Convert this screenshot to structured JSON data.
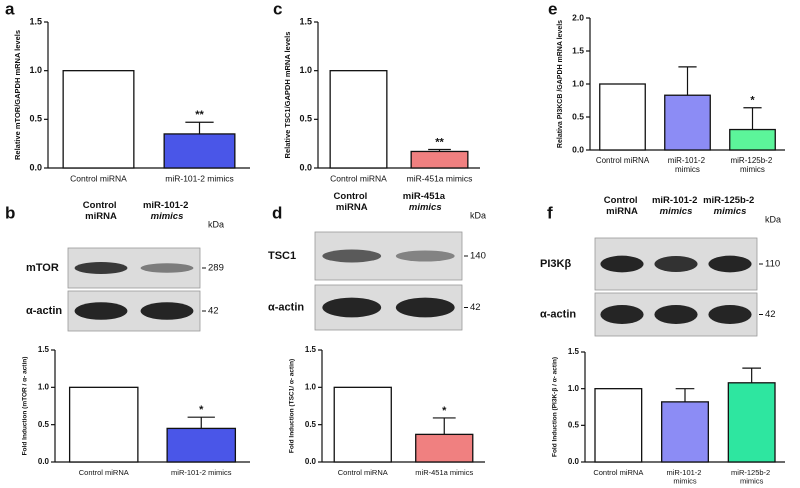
{
  "chart_data": [
    {
      "type": "bar",
      "panel": "a",
      "ylabel": "Relative mTOR/GAPDH mRNA levels",
      "categories": [
        "Control miRNA",
        "miR-101-2 mimics"
      ],
      "values": [
        1.0,
        0.35
      ],
      "errors": [
        null,
        0.12
      ],
      "colors": [
        "#ffffff",
        "#4a56e8"
      ],
      "annotations": [
        null,
        "**"
      ],
      "ylim": [
        0,
        1.5
      ],
      "yticks": [
        {
          "value": 0,
          "label": "0.0"
        },
        0.5,
        {
          "value": 1,
          "label": "1.0"
        },
        1.5
      ]
    },
    {
      "type": "bar",
      "panel": "c",
      "ylabel": "Relative TSC1/GAPDH mRNA levels",
      "categories": [
        "Control miRNA",
        "miR-451a mimics"
      ],
      "values": [
        1.0,
        0.17
      ],
      "errors": [
        null,
        0.02
      ],
      "colors": [
        "#ffffff",
        "#f08080"
      ],
      "annotations": [
        null,
        "**"
      ],
      "ylim": [
        0,
        1.5
      ],
      "yticks": [
        {
          "value": 0,
          "label": "0.0"
        },
        0.5,
        {
          "value": 1,
          "label": "1.0"
        },
        1.5
      ]
    },
    {
      "type": "bar",
      "panel": "e",
      "ylabel": "Relativa PI3KCB /GAPDH mRNA levels",
      "categories": [
        "Control miRNA",
        "miR-101-2 mimics",
        "miR-125b-2 mimics"
      ],
      "values": [
        1.0,
        0.83,
        0.31
      ],
      "errors": [
        null,
        0.43,
        0.33
      ],
      "colors": [
        "#ffffff",
        "#8c8cf5",
        "#5cf59a"
      ],
      "annotations": [
        null,
        null,
        "*"
      ],
      "ylim": [
        0,
        2
      ],
      "yticks": [
        {
          "value": 0,
          "label": "0.0"
        },
        0.5,
        {
          "value": 1,
          "label": "1.0"
        },
        1.5,
        {
          "value": 2,
          "label": "2.0"
        }
      ]
    },
    {
      "type": "bar",
      "ylabel": "Fold Induction (mTOR / α- actin)",
      "categories": [
        "Control miRNA",
        "miR-101-2 mimics"
      ],
      "values": [
        1.0,
        0.45
      ],
      "errors": [
        null,
        0.15
      ],
      "colors": [
        "#ffffff",
        "#4a56e8"
      ],
      "annotations": [
        null,
        "*"
      ],
      "ylim": [
        0,
        1.5
      ],
      "yticks": [
        {
          "value": 0,
          "label": "0.0"
        },
        0.5,
        {
          "value": 1,
          "label": "1.0"
        },
        1.5
      ]
    },
    {
      "type": "bar",
      "ylabel": "Fold Induction (TSC1/ α- actin)",
      "categories": [
        "Control miRNA",
        "miR-451a mimics"
      ],
      "values": [
        1.0,
        0.37
      ],
      "errors": [
        null,
        0.22
      ],
      "colors": [
        "#ffffff",
        "#f08080"
      ],
      "annotations": [
        null,
        "*"
      ],
      "ylim": [
        0,
        1.5
      ],
      "yticks": [
        {
          "value": 0,
          "label": "0.0"
        },
        0.5,
        {
          "value": 1,
          "label": "1.0"
        },
        1.5
      ]
    },
    {
      "type": "bar",
      "ylabel": "Fold Induction (PI3K-β / α- actin)",
      "categories": [
        "Control miRNA",
        "miR-101-2 mimics",
        "miR-125b-2 mimics"
      ],
      "values": [
        1.0,
        0.82,
        1.08
      ],
      "errors": [
        null,
        0.18,
        0.2
      ],
      "colors": [
        "#ffffff",
        "#8c8cf5",
        "#2ee6a0"
      ],
      "annotations": [
        null,
        null,
        null
      ],
      "ylim": [
        0,
        1.5
      ],
      "yticks": [
        {
          "value": 0,
          "label": "0.0"
        },
        0.5,
        {
          "value": 1,
          "label": "1.0"
        },
        1.5
      ]
    }
  ],
  "blots": [
    {
      "panel": "b",
      "lanes": [
        "Control miRNA",
        "miR-101-2 mimics"
      ],
      "unit": "kDa",
      "rows": [
        {
          "name": "mTOR",
          "kda": 289
        },
        {
          "name": "α-actin",
          "kda": 42
        }
      ]
    },
    {
      "panel": "d",
      "lanes": [
        "Control miRNA",
        "miR-451a mimics"
      ],
      "unit": "kDa",
      "rows": [
        {
          "name": "TSC1",
          "kda": 140
        },
        {
          "name": "α-actin",
          "kda": 42
        }
      ]
    },
    {
      "panel": "f",
      "lanes": [
        "Control miRNA",
        "miR-101-2 mimics",
        "miR-125b-2 mimics"
      ],
      "unit": "kDa",
      "rows": [
        {
          "name": "PI3Kβ",
          "kda": 110
        },
        {
          "name": "α-actin",
          "kda": 42
        }
      ]
    }
  ]
}
